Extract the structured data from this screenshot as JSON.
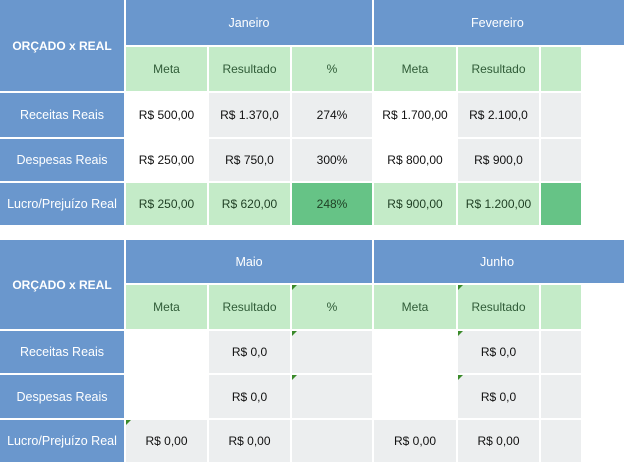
{
  "block1": {
    "corner": "ORÇADO x REAL",
    "months": [
      "Janeiro",
      "Fevereiro"
    ],
    "subheaders": [
      "Meta",
      "Resultado",
      "%",
      "Meta",
      "Resultado"
    ],
    "rows": [
      {
        "label": "Receitas Reais",
        "values": [
          "R$ 500,00",
          "R$ 1.370,0",
          "274%",
          "R$ 1.700,00",
          "R$ 2.100,0"
        ]
      },
      {
        "label": "Despesas Reais",
        "values": [
          "R$ 250,00",
          "R$ 750,0",
          "300%",
          "R$ 800,00",
          "R$ 900,0"
        ]
      },
      {
        "label": "Lucro/Prejuízo Real",
        "values": [
          "R$ 250,00",
          "R$ 620,00",
          "248%",
          "R$ 900,00",
          "R$ 1.200,00"
        ]
      }
    ]
  },
  "block2": {
    "corner": "ORÇADO x REAL",
    "months": [
      "Maio",
      "Junho"
    ],
    "subheaders": [
      "Meta",
      "Resultado",
      "%",
      "Meta",
      "Resultado"
    ],
    "rows": [
      {
        "label": "Receitas Reais",
        "values": [
          "",
          "R$ 0,0",
          "",
          "",
          "R$ 0,0"
        ]
      },
      {
        "label": "Despesas Reais",
        "values": [
          "",
          "R$ 0,0",
          "",
          "",
          "R$ 0,0"
        ]
      },
      {
        "label": "Lucro/Prejuízo Real",
        "values": [
          "R$ 0,00",
          "R$ 0,00",
          "",
          "R$ 0,00",
          "R$ 0,00"
        ]
      }
    ]
  },
  "colors": {
    "header_blue": "#6a97cd",
    "subheader_green": "#c4ebc8",
    "percent_green": "#66c386",
    "gray_cell": "#eceeef"
  }
}
